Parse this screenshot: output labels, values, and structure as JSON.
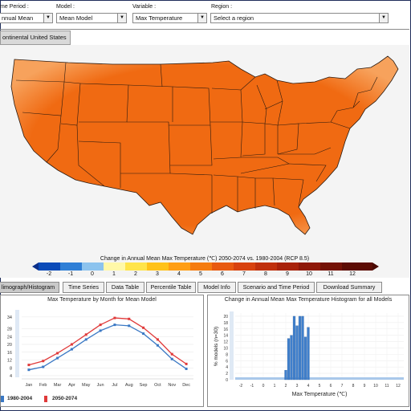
{
  "controls": {
    "period_label": "me Period :",
    "period_value": "nnual Mean",
    "model_label": "Model :",
    "model_value": "Mean Model",
    "variable_label": "Variable :",
    "variable_value": "Max Temperature",
    "region_label": "Region :",
    "region_value": "Select a region"
  },
  "region_button": "ontinental United States",
  "map": {
    "title": "Change in Annual Mean Max Temperature (℃) 2050-2074 vs. 1980-2004 (RCP 8.5)",
    "scale_labels": [
      "-2",
      "-1",
      "0",
      "1",
      "2",
      "3",
      "4",
      "5",
      "6",
      "7",
      "8",
      "9",
      "10",
      "11",
      "12"
    ],
    "fill_color": "#f06a12",
    "coast_color": "#f7a25c"
  },
  "tabs": [
    {
      "label": "limograph/Histogram"
    },
    {
      "label": "Time Series"
    },
    {
      "label": "Data Table"
    },
    {
      "label": "Percentile Table"
    },
    {
      "label": "Model Info"
    },
    {
      "label": "Scenario and Time Period"
    },
    {
      "label": "Download Summary"
    }
  ],
  "chart_data": [
    {
      "type": "line",
      "title": "Max Temperature by Month for Mean Model",
      "categories": [
        "Jan",
        "Feb",
        "Mar",
        "Apr",
        "May",
        "Jun",
        "Jul",
        "Aug",
        "Sep",
        "Oct",
        "Nov",
        "Dec"
      ],
      "yticks": [
        "4",
        "8",
        "12",
        "16",
        "20",
        "24",
        "28",
        "34"
      ],
      "ylim": [
        4,
        36
      ],
      "series": [
        {
          "name": "1980-2004",
          "color": "#3a78c4",
          "values": [
            7.0,
            8.5,
            13.0,
            17.5,
            22.5,
            27.0,
            30.0,
            29.5,
            25.5,
            19.5,
            12.5,
            7.5
          ]
        },
        {
          "name": "2050-2074",
          "color": "#e03a3a",
          "values": [
            9.5,
            11.5,
            15.5,
            20.0,
            25.0,
            30.0,
            33.5,
            33.0,
            28.5,
            22.5,
            15.0,
            10.0
          ]
        }
      ]
    },
    {
      "type": "bar",
      "title": "Change in Annual Mean Max Temperature Histogram for all Models",
      "xlabel": "Max Temperature (℃)",
      "ylabel": "% models (n=30)",
      "xticks": [
        "-2",
        "-1",
        "0",
        "1",
        "2",
        "3",
        "4",
        "5",
        "6",
        "7",
        "8",
        "9",
        "10",
        "11",
        "12"
      ],
      "yticks": [
        "0",
        "2",
        "4",
        "6",
        "8",
        "10",
        "12",
        "14",
        "16",
        "18",
        "20"
      ],
      "ylim": [
        0,
        21
      ],
      "bin_width": 0.25,
      "bins": [
        {
          "x": 2.0,
          "value": 3
        },
        {
          "x": 2.25,
          "value": 13
        },
        {
          "x": 2.5,
          "value": 14
        },
        {
          "x": 2.75,
          "value": 20
        },
        {
          "x": 3.0,
          "value": 17
        },
        {
          "x": 3.25,
          "value": 20
        },
        {
          "x": 3.5,
          "value": 20
        },
        {
          "x": 3.75,
          "value": 13.5
        },
        {
          "x": 4.0,
          "value": 16.5
        }
      ]
    }
  ]
}
